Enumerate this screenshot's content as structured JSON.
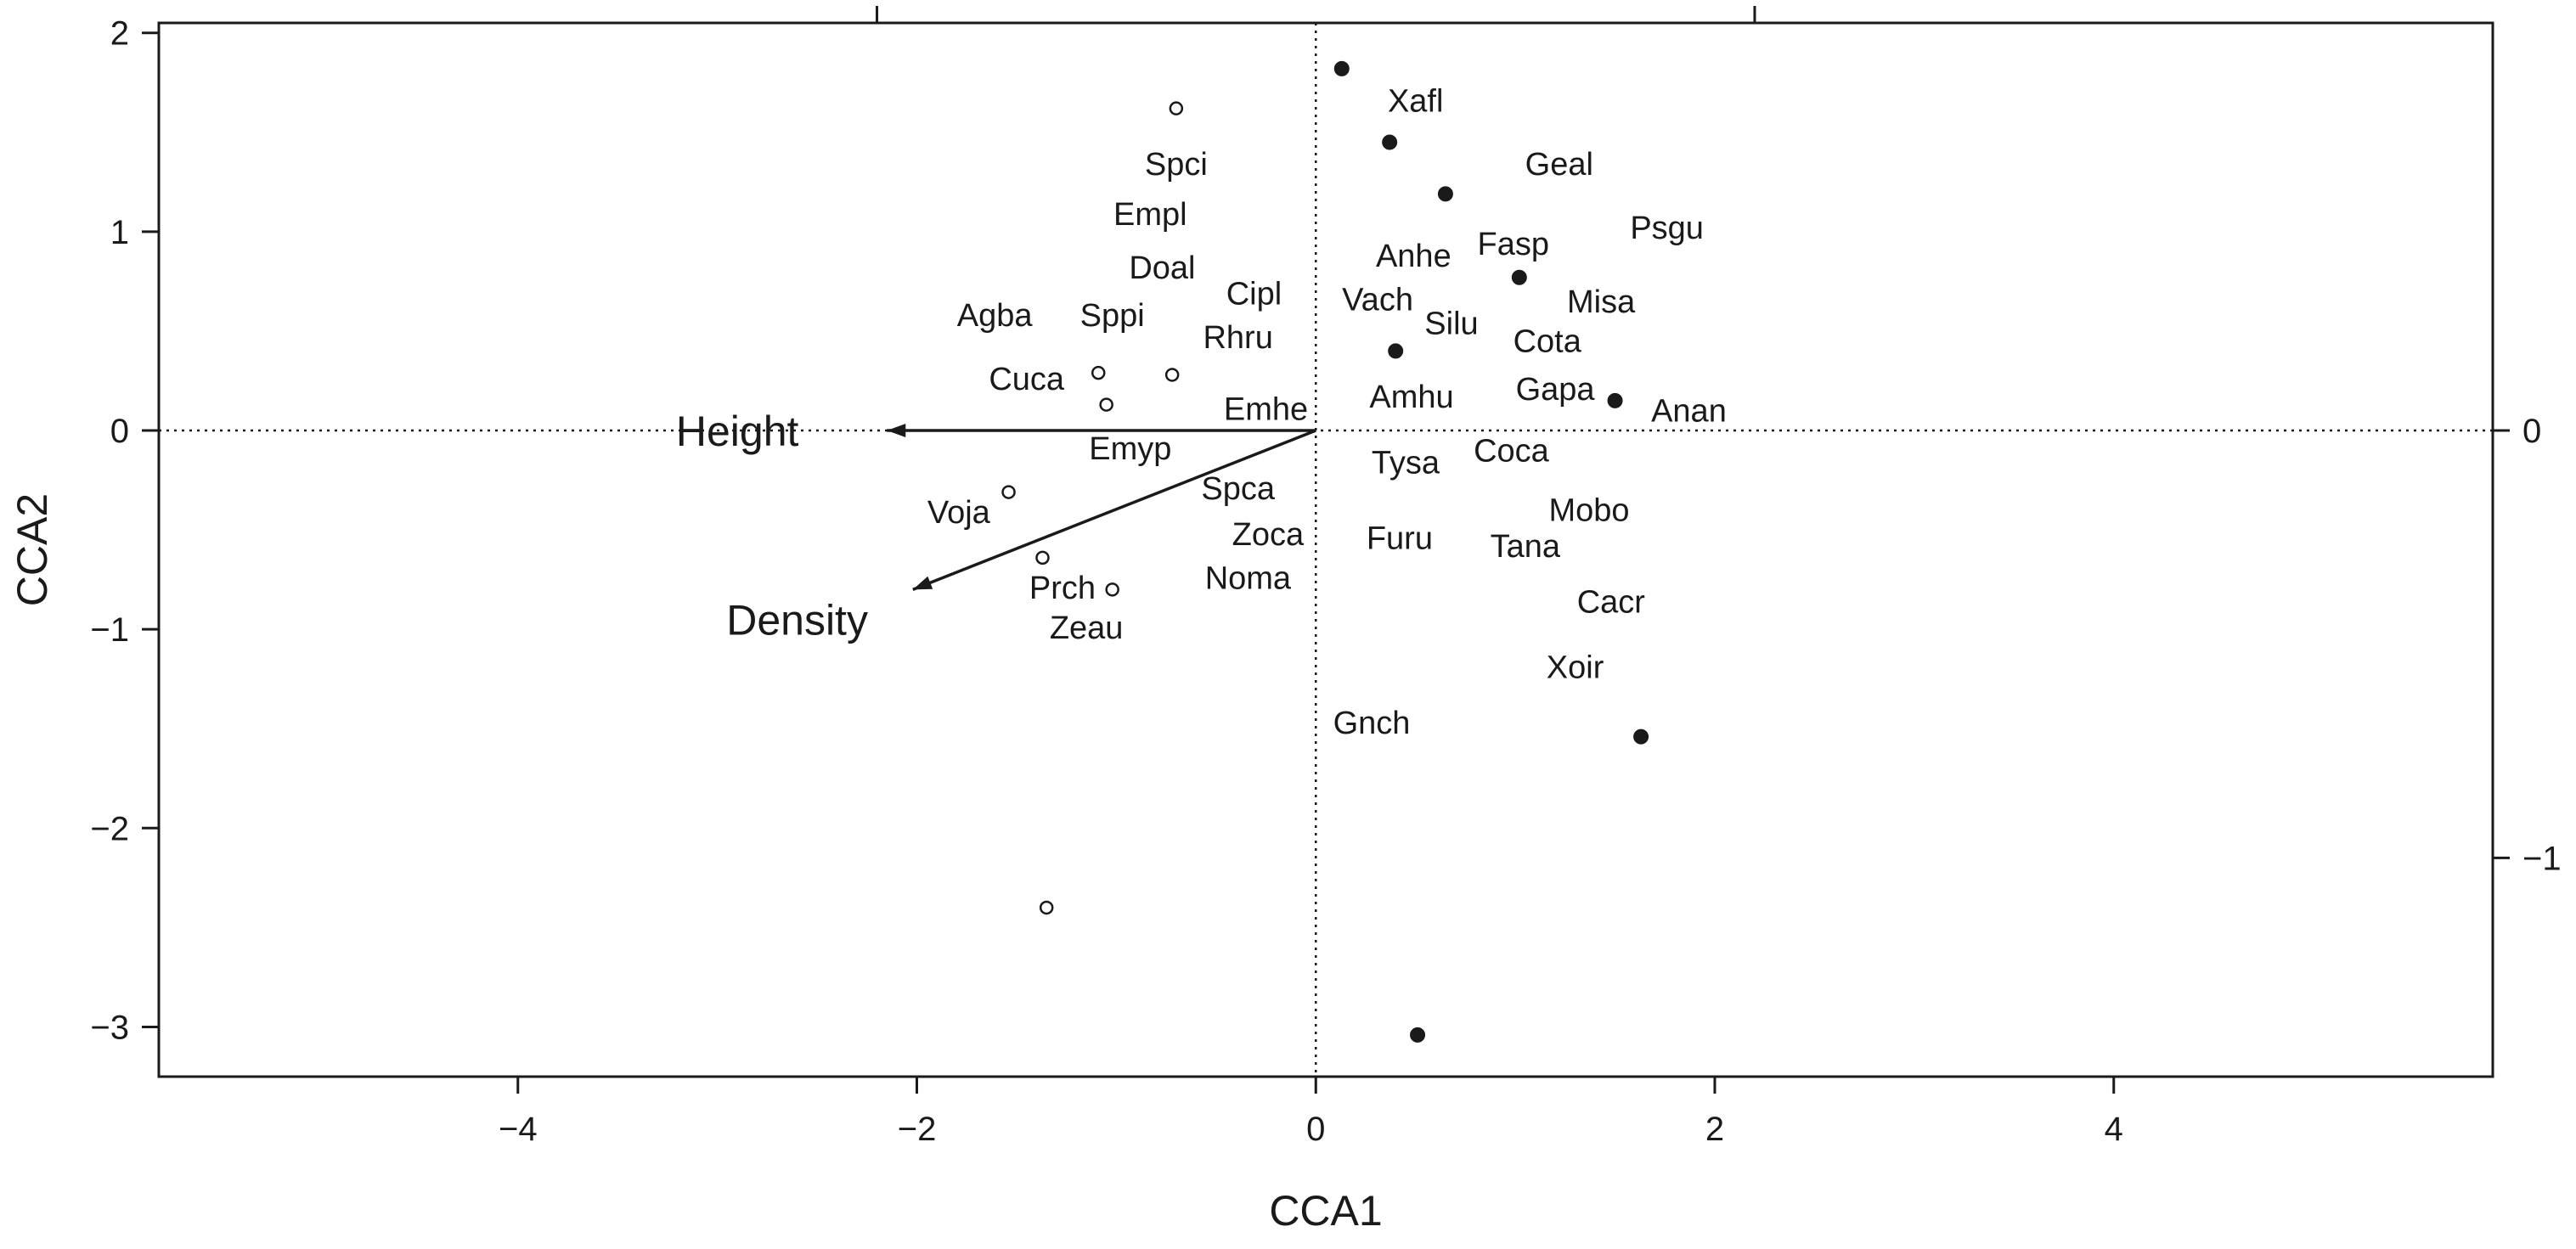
{
  "chart_data": {
    "type": "scatter",
    "title": "",
    "xlabel": "CCA1",
    "ylabel": "CCA2",
    "xlim": [
      -5.8,
      5.9
    ],
    "ylim": [
      -3.25,
      2.05
    ],
    "x_ticks": [
      -4,
      -2,
      0,
      2,
      4
    ],
    "x_tick_labels": [
      "−4",
      "−2",
      "0",
      "2",
      "4"
    ],
    "y_ticks": [
      -3,
      -2,
      -1,
      0,
      1,
      2
    ],
    "y_tick_labels": [
      "−3",
      "−2",
      "−1",
      "0",
      "1",
      "2"
    ],
    "top_axis_ticks": [
      -2.2,
      2.2
    ],
    "right_axis": {
      "ticks": [
        0,
        -1
      ],
      "tick_labels": [
        "0",
        "−1"
      ],
      "scale": 2.15
    },
    "grid": false,
    "reference_lines": {
      "x": 0,
      "y": 0,
      "style": "dotted"
    },
    "vectors": [
      {
        "label": "Height",
        "x": -2.15,
        "y": 0.0,
        "label_x": -2.9,
        "label_y": 0.0
      },
      {
        "label": "Density",
        "x": -2.02,
        "y": -0.8,
        "label_x": -2.6,
        "label_y": -0.95
      }
    ],
    "sites_open": [
      {
        "x": -0.7,
        "y": 1.62
      },
      {
        "x": -1.09,
        "y": 0.29
      },
      {
        "x": -0.72,
        "y": 0.28
      },
      {
        "x": -1.05,
        "y": 0.13
      },
      {
        "x": -1.54,
        "y": -0.31
      },
      {
        "x": -1.37,
        "y": -0.64
      },
      {
        "x": -1.02,
        "y": -0.8
      },
      {
        "x": -1.35,
        "y": -2.4
      }
    ],
    "sites_filled": [
      {
        "x": 0.13,
        "y": 1.82
      },
      {
        "x": 0.37,
        "y": 1.45
      },
      {
        "x": 0.65,
        "y": 1.19
      },
      {
        "x": 1.02,
        "y": 0.77
      },
      {
        "x": 0.4,
        "y": 0.4
      },
      {
        "x": 1.5,
        "y": 0.15
      },
      {
        "x": 1.63,
        "y": -1.54
      },
      {
        "x": 0.51,
        "y": -3.04
      }
    ],
    "species": [
      {
        "label": "Xafl",
        "x": 0.5,
        "y": 1.66
      },
      {
        "label": "Spci",
        "x": -0.7,
        "y": 1.34
      },
      {
        "label": "Geal",
        "x": 1.22,
        "y": 1.34
      },
      {
        "label": "Empl",
        "x": -0.83,
        "y": 1.09
      },
      {
        "label": "Psgu",
        "x": 1.76,
        "y": 1.02
      },
      {
        "label": "Fasp",
        "x": 0.99,
        "y": 0.94
      },
      {
        "label": "Anhe",
        "x": 0.49,
        "y": 0.88
      },
      {
        "label": "Doal",
        "x": -0.77,
        "y": 0.82
      },
      {
        "label": "Cipl",
        "x": -0.31,
        "y": 0.69
      },
      {
        "label": "Vach",
        "x": 0.31,
        "y": 0.66
      },
      {
        "label": "Misa",
        "x": 1.43,
        "y": 0.65
      },
      {
        "label": "Agba",
        "x": -1.61,
        "y": 0.58
      },
      {
        "label": "Sppi",
        "x": -1.02,
        "y": 0.58
      },
      {
        "label": "Silu",
        "x": 0.68,
        "y": 0.54
      },
      {
        "label": "Rhru",
        "x": -0.39,
        "y": 0.47
      },
      {
        "label": "Cota",
        "x": 1.16,
        "y": 0.45
      },
      {
        "label": "Cuca",
        "x": -1.45,
        "y": 0.26
      },
      {
        "label": "Gapa",
        "x": 1.2,
        "y": 0.21
      },
      {
        "label": "Amhu",
        "x": 0.48,
        "y": 0.17
      },
      {
        "label": "Emhe",
        "x": -0.25,
        "y": 0.11
      },
      {
        "label": "Anan",
        "x": 1.87,
        "y": 0.1
      },
      {
        "label": "Emyp",
        "x": -0.93,
        "y": -0.09
      },
      {
        "label": "Coca",
        "x": 0.98,
        "y": -0.1
      },
      {
        "label": "Tysa",
        "x": 0.45,
        "y": -0.16
      },
      {
        "label": "Spca",
        "x": -0.39,
        "y": -0.29
      },
      {
        "label": "Voja",
        "x": -1.79,
        "y": -0.41
      },
      {
        "label": "Mobo",
        "x": 1.37,
        "y": -0.4
      },
      {
        "label": "Zoca",
        "x": -0.24,
        "y": -0.52
      },
      {
        "label": "Furu",
        "x": 0.42,
        "y": -0.54
      },
      {
        "label": "Tana",
        "x": 1.05,
        "y": -0.58
      },
      {
        "label": "Noma",
        "x": -0.34,
        "y": -0.74
      },
      {
        "label": "Prch",
        "x": -1.27,
        "y": -0.79
      },
      {
        "label": "Cacr",
        "x": 1.48,
        "y": -0.86
      },
      {
        "label": "Zeau",
        "x": -1.15,
        "y": -0.99
      },
      {
        "label": "Xoir",
        "x": 1.3,
        "y": -1.19
      },
      {
        "label": "Gnch",
        "x": 0.28,
        "y": -1.47
      }
    ]
  }
}
